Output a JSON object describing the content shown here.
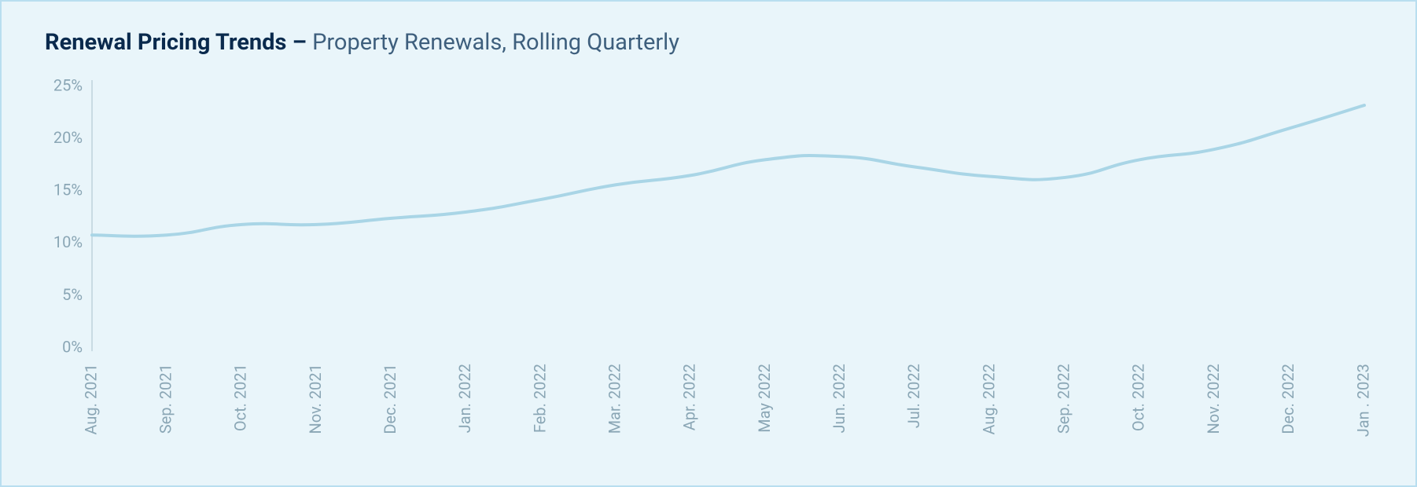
{
  "title": {
    "bold": "Renewal Pricing Trends –",
    "light": " Property Renewals, Rolling Quarterly",
    "bold_color": "#0a2a4d",
    "light_color": "#3e5f7d",
    "fontsize": 29
  },
  "chart": {
    "type": "line",
    "background_color": "#e9f5fa",
    "border_color": "#b9def0",
    "axis_line_color": "#a9c1cc",
    "tick_label_color": "#8aa6b5",
    "tick_label_fontsize": 20,
    "line_color": "#a9d5e6",
    "line_width": 4,
    "ylim": [
      0,
      25
    ],
    "ytick_step": 5,
    "yticks": [
      "0%",
      "5%",
      "10%",
      "15%",
      "20%",
      "25%"
    ],
    "categories": [
      "Aug. 2021",
      "Sep. 2021",
      "Oct. 2021",
      "Nov. 2021",
      "Dec. 2021",
      "Jan. 2022",
      "Feb. 2022",
      "Mar. 2022",
      "Apr. 2022",
      "May 2022",
      "Jun. 2022",
      "Jul. 2022",
      "Aug. 2022",
      "Sep. 2022",
      "Oct. 2022",
      "Nov. 2022",
      "Dec. 2022",
      "Jan . 2023"
    ],
    "values": [
      10.8,
      10.8,
      11.8,
      11.8,
      12.4,
      13.0,
      14.2,
      15.6,
      16.5,
      18.0,
      18.3,
      17.3,
      16.4,
      16.3,
      18.0,
      19.0,
      21.0,
      23.2
    ]
  }
}
